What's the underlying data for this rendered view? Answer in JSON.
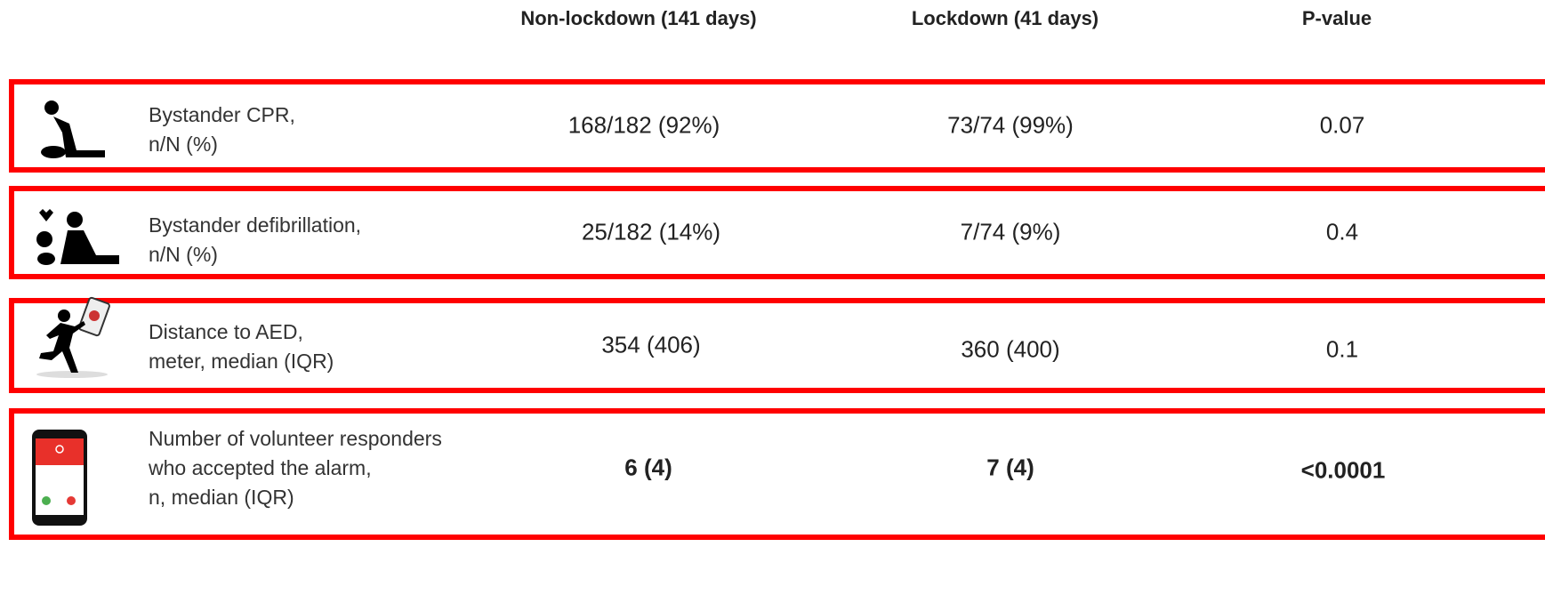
{
  "header": {
    "columns": [
      "Non-lockdown (141 days)",
      "Lockdown (41 days)",
      "P-value"
    ]
  },
  "rows": [
    {
      "label": [
        "Bystander CPR,",
        "n/N (%)"
      ],
      "values": [
        "168/182 (92%)",
        "73/74 (99%)",
        "0.07"
      ]
    },
    {
      "label": [
        "Bystander defibrillation,",
        "n/N (%)"
      ],
      "values": [
        "25/182 (14%)",
        "7/74 (9%)",
        "0.4"
      ]
    },
    {
      "label": [
        "Distance to AED,",
        "meter, median (IQR)"
      ],
      "values": [
        "354 (406)",
        "360 (400)",
        "0.1"
      ]
    },
    {
      "label": [
        "Number of volunteer responders",
        "who accepted the alarm,",
        "n, median (IQR)"
      ],
      "values": [
        "6 (4)",
        "7 (4)",
        "<0.0001"
      ]
    }
  ]
}
